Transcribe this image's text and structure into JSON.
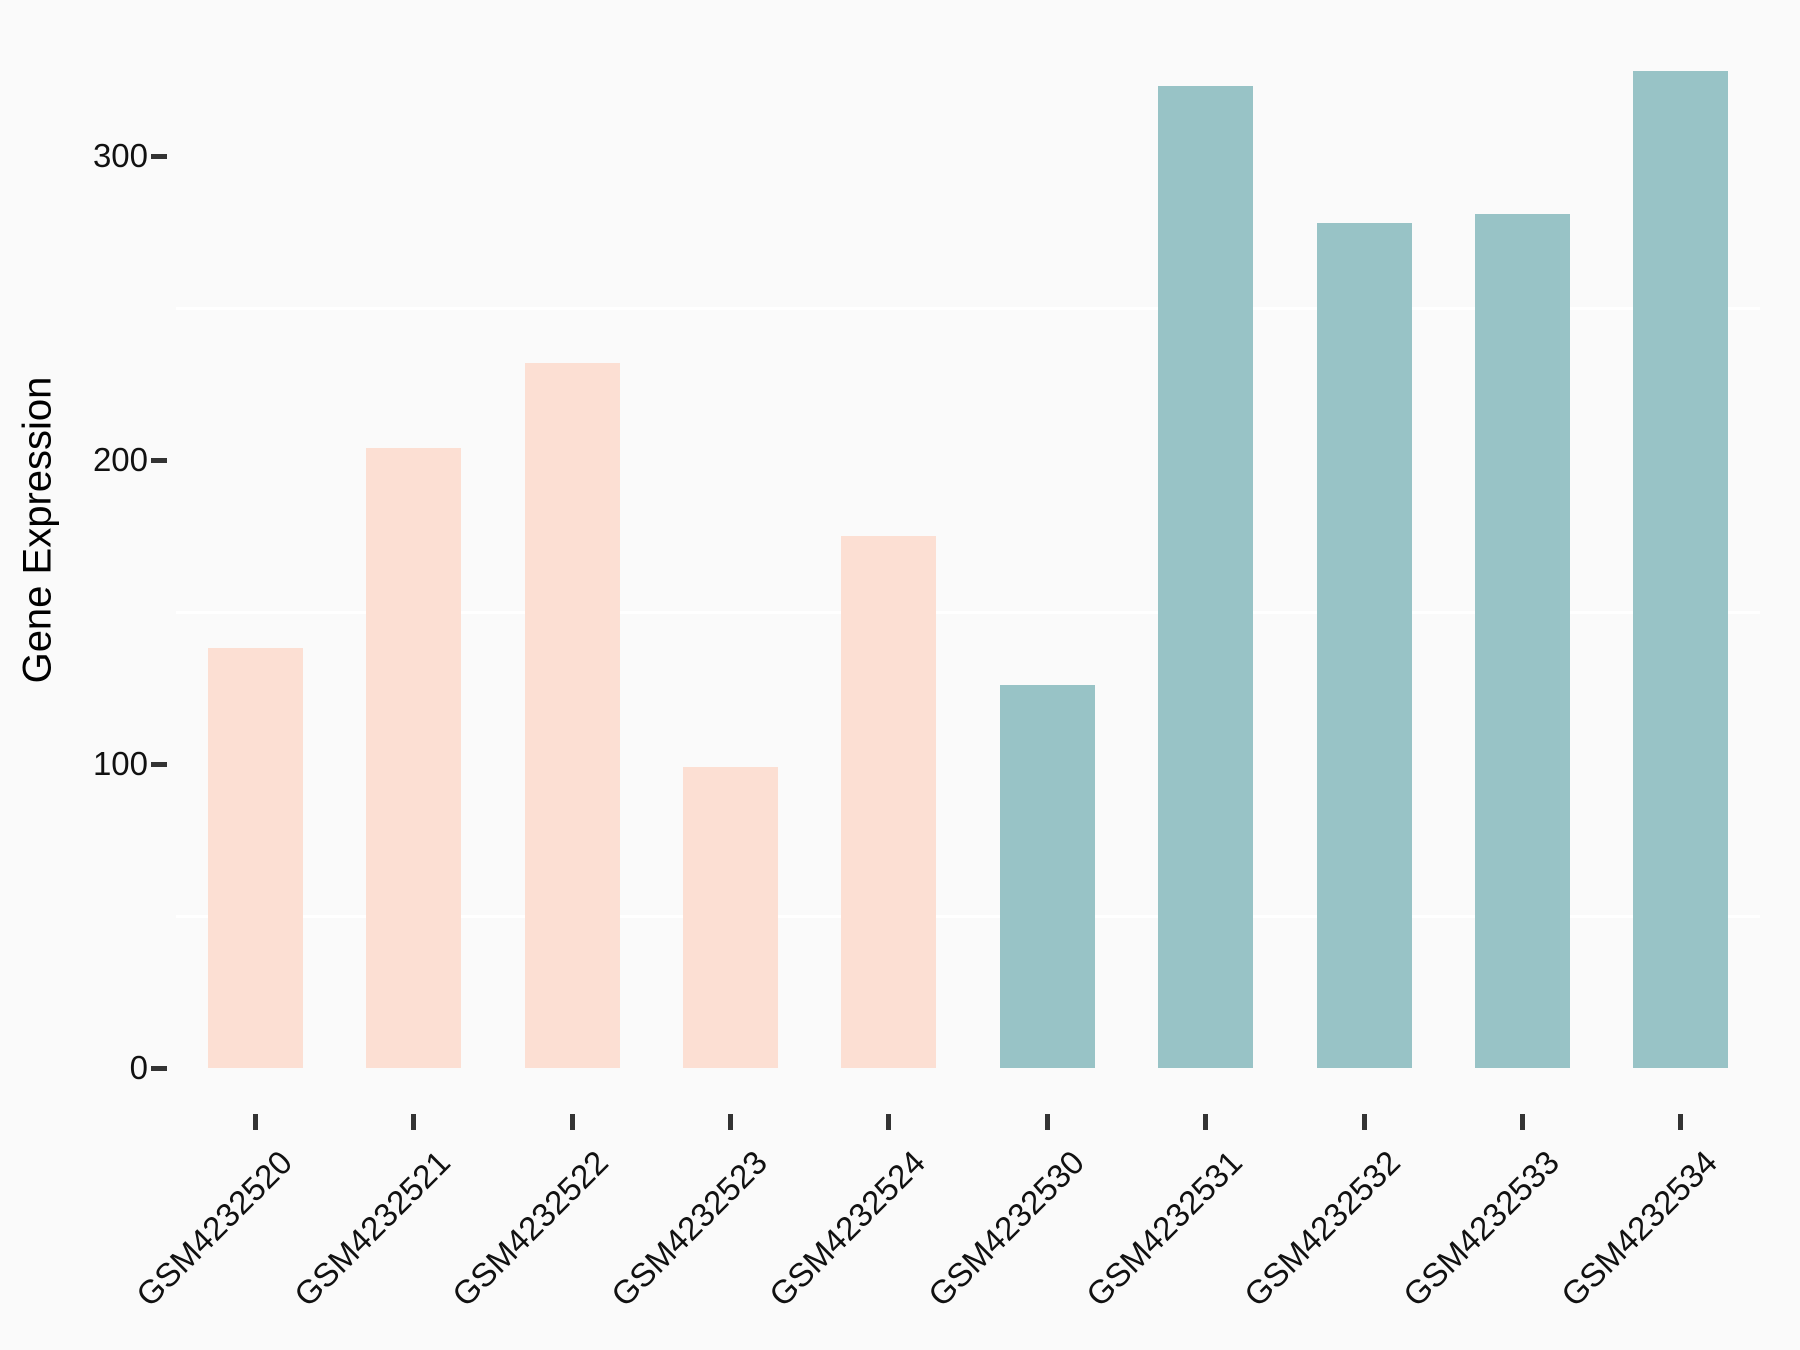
{
  "figure": {
    "background_color": "#fafafa",
    "gridline_color": "#ffffff",
    "tick_mark_color": "#333333",
    "text_color": "#111111"
  },
  "chart_data": {
    "type": "bar",
    "title": "",
    "xlabel": "",
    "ylabel": "Gene Expression",
    "categories": [
      "GSM4232520",
      "GSM4232521",
      "GSM4232522",
      "GSM4232523",
      "GSM4232524",
      "GSM4232530",
      "GSM4232531",
      "GSM4232532",
      "GSM4232533",
      "GSM4232534"
    ],
    "values": [
      138,
      204,
      232,
      99,
      175,
      126,
      323,
      278,
      281,
      328
    ],
    "bar_colors": [
      "#fcdfd3",
      "#fcdfd3",
      "#fcdfd3",
      "#fcdfd3",
      "#fcdfd3",
      "#98c3c6",
      "#98c3c6",
      "#98c3c6",
      "#98c3c6",
      "#98c3c6"
    ],
    "color_groups": {
      "peach": "#fcdfd3",
      "teal": "#98c3c6"
    },
    "yticks": [
      0,
      100,
      200,
      300
    ],
    "minor_gridlines": [
      50,
      150,
      250
    ],
    "ylim": [
      0,
      345
    ],
    "grid": "minor-only",
    "legend": "none"
  }
}
